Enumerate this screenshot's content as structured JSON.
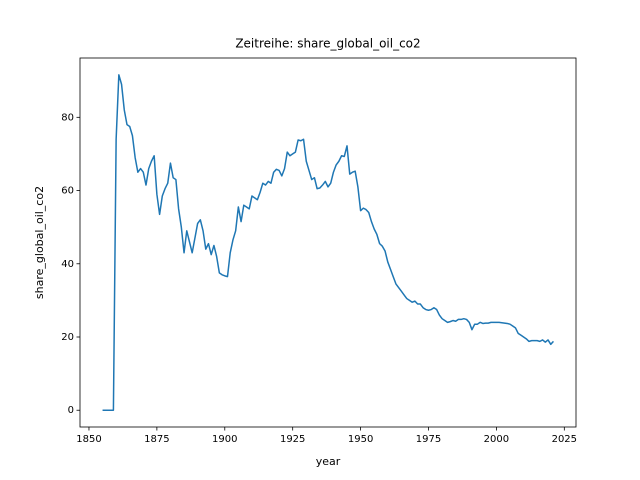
{
  "chart_data": {
    "type": "line",
    "title": "Zeitreihe: share_global_oil_co2",
    "x_label": "year",
    "y_label": "share_global_oil_co2",
    "x": [
      1855,
      1856,
      1857,
      1858,
      1859,
      1860,
      1861,
      1862,
      1863,
      1864,
      1865,
      1866,
      1867,
      1868,
      1869,
      1870,
      1871,
      1872,
      1873,
      1874,
      1875,
      1876,
      1877,
      1878,
      1879,
      1880,
      1881,
      1882,
      1883,
      1884,
      1885,
      1886,
      1887,
      1888,
      1889,
      1890,
      1891,
      1892,
      1893,
      1894,
      1895,
      1896,
      1897,
      1898,
      1899,
      1900,
      1901,
      1902,
      1903,
      1904,
      1905,
      1906,
      1907,
      1908,
      1909,
      1910,
      1911,
      1912,
      1913,
      1914,
      1915,
      1916,
      1917,
      1918,
      1919,
      1920,
      1921,
      1922,
      1923,
      1924,
      1925,
      1926,
      1927,
      1928,
      1929,
      1930,
      1931,
      1932,
      1933,
      1934,
      1935,
      1936,
      1937,
      1938,
      1939,
      1940,
      1941,
      1942,
      1943,
      1944,
      1945,
      1946,
      1947,
      1948,
      1949,
      1950,
      1951,
      1952,
      1953,
      1954,
      1955,
      1956,
      1957,
      1958,
      1959,
      1960,
      1961,
      1962,
      1963,
      1964,
      1965,
      1966,
      1967,
      1968,
      1969,
      1970,
      1971,
      1972,
      1973,
      1974,
      1975,
      1976,
      1977,
      1978,
      1979,
      1980,
      1981,
      1982,
      1983,
      1984,
      1985,
      1986,
      1987,
      1988,
      1989,
      1990,
      1991,
      1992,
      1993,
      1994,
      1995,
      1996,
      1997,
      1998,
      1999,
      2000,
      2001,
      2002,
      2003,
      2004,
      2005,
      2006,
      2007,
      2008,
      2009,
      2010,
      2011,
      2012,
      2013,
      2014,
      2015,
      2016,
      2017,
      2018,
      2019,
      2020,
      2021
    ],
    "series": [
      {
        "name": "share_global_oil_co2",
        "color": "#1f77b4",
        "values": [
          0,
          0,
          0,
          0,
          0,
          74,
          91.6,
          89,
          82,
          78,
          77.5,
          75,
          69,
          65,
          66,
          65,
          61.5,
          66,
          68,
          69.5,
          59,
          53.5,
          58.5,
          60.5,
          62,
          67.5,
          63.5,
          63,
          55,
          50,
          43,
          49,
          46,
          43,
          47,
          51,
          52,
          49,
          44,
          45.5,
          42.5,
          45,
          42,
          37.5,
          37,
          36.7,
          36.5,
          43,
          46.5,
          49,
          55.5,
          51.5,
          56,
          55.5,
          55,
          58.5,
          58,
          57.5,
          59.5,
          62,
          61.5,
          62.5,
          62,
          65,
          65.8,
          65.5,
          64,
          66,
          70.5,
          69.5,
          70,
          70.5,
          73.8,
          73.6,
          74,
          68,
          65.5,
          63,
          63.5,
          60.5,
          60.7,
          61.5,
          62.5,
          61,
          62,
          65,
          67,
          68,
          69.5,
          69.3,
          72.2,
          64.5,
          65,
          65.3,
          61,
          54.5,
          55.2,
          54.8,
          54,
          51.5,
          49.5,
          48,
          45.5,
          44.8,
          43.5,
          40.5,
          38.5,
          36.5,
          34.5,
          33.5,
          32.5,
          31.5,
          30.5,
          30,
          29.5,
          29.8,
          29,
          29,
          28,
          27.5,
          27.3,
          27.5,
          28,
          27.5,
          26,
          25,
          24.5,
          24,
          24.2,
          24.5,
          24.3,
          24.8,
          24.8,
          25,
          24.8,
          24,
          22,
          23.5,
          23.5,
          24,
          23.7,
          23.8,
          23.8,
          24,
          24,
          24,
          24,
          23.9,
          23.8,
          23.7,
          23.5,
          23,
          22.5,
          21,
          20.5,
          20,
          19.5,
          18.8,
          19,
          19,
          19,
          18.8,
          19.2,
          18.6,
          19.2,
          18,
          18.8
        ]
      }
    ],
    "xlim": [
      1846.7,
      2029.3
    ],
    "ylim": [
      -4.58,
      96.2
    ],
    "xticks": [
      1850,
      1875,
      1900,
      1925,
      1950,
      1975,
      2000,
      2025
    ],
    "yticks": [
      0,
      20,
      40,
      60,
      80
    ],
    "grid": false
  }
}
